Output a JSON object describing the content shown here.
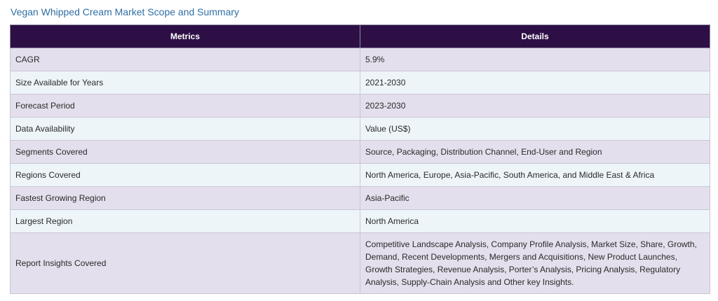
{
  "page": {
    "title": "Vegan Whipped Cream Market Scope and Summary"
  },
  "table": {
    "headers": [
      "Metrics",
      "Details"
    ],
    "rows": [
      {
        "metric": "CAGR",
        "details": "5.9%"
      },
      {
        "metric": "Size Available for Years",
        "details": "2021-2030"
      },
      {
        "metric": "Forecast Period",
        "details": "2023-2030"
      },
      {
        "metric": "Data Availability",
        "details": "Value (US$)"
      },
      {
        "metric": "Segments Covered",
        "details": "Source, Packaging, Distribution Channel, End-User and Region"
      },
      {
        "metric": "Regions Covered",
        "details": "North America, Europe, Asia-Pacific, South America, and Middle East & Africa"
      },
      {
        "metric": "Fastest Growing Region",
        "details": "Asia-Pacific"
      },
      {
        "metric": "Largest Region",
        "details": "North America"
      },
      {
        "metric": "Report Insights Covered",
        "details": "Competitive Landscape Analysis, Company Profile Analysis, Market Size, Share, Growth, Demand, Recent Developments, Mergers and Acquisitions, New Product Launches, Growth Strategies, Revenue Analysis, Porter’s Analysis, Pricing Analysis, Regulatory Analysis, Supply-Chain Analysis and Other key Insights."
      }
    ]
  },
  "colors": {
    "title_text": "#2f6fa3",
    "header_bg": "#2d0f45",
    "header_text": "#ffffff",
    "row_odd_bg": "#e3dfec",
    "row_even_bg": "#eef5f9"
  }
}
